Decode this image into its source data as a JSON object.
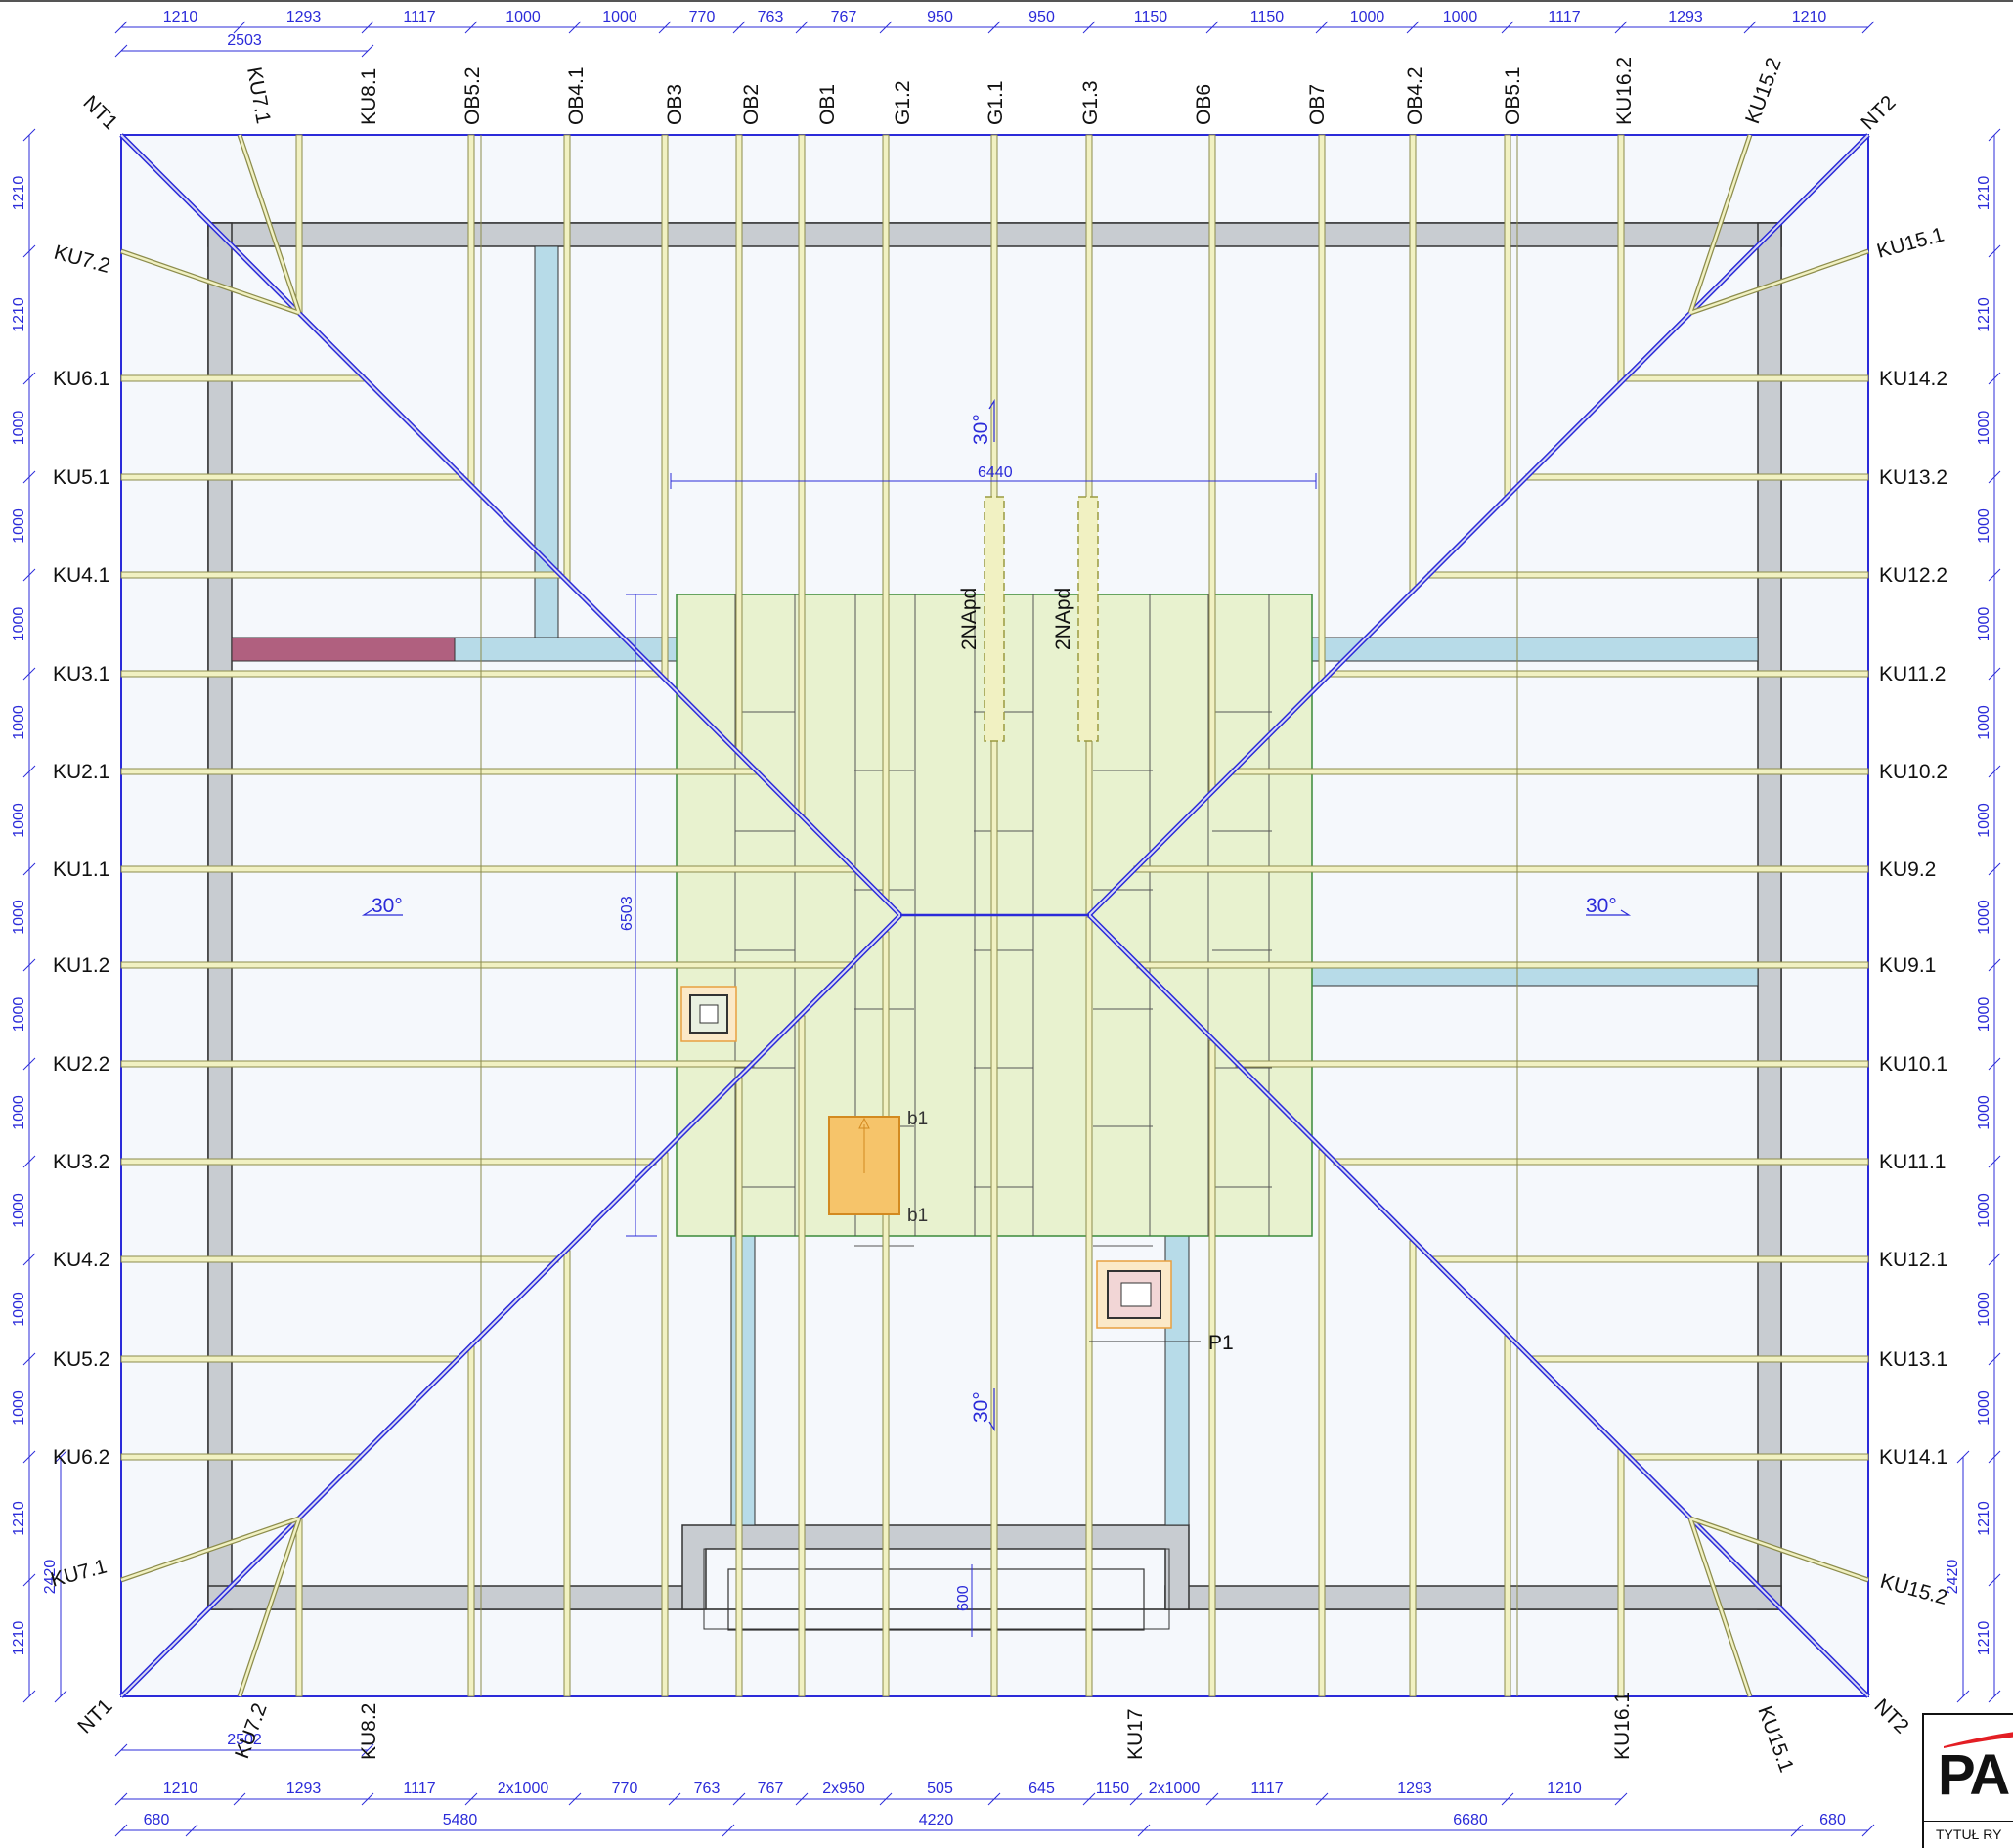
{
  "rafters_top": [
    {
      "id": "r-ku71",
      "label": "KU7.1"
    },
    {
      "id": "r-ku81",
      "label": "KU8.1"
    },
    {
      "id": "r-ob52",
      "label": "OB5.2"
    },
    {
      "id": "r-ob41",
      "label": "OB4.1"
    },
    {
      "id": "r-ob3",
      "label": "OB3"
    },
    {
      "id": "r-ob2",
      "label": "OB2"
    },
    {
      "id": "r-ob1",
      "label": "OB1"
    },
    {
      "id": "r-g12",
      "label": "G1.2"
    },
    {
      "id": "r-g11",
      "label": "G1.1"
    },
    {
      "id": "r-g13",
      "label": "G1.3"
    },
    {
      "id": "r-ob6",
      "label": "OB6"
    },
    {
      "id": "r-ob7",
      "label": "OB7"
    },
    {
      "id": "r-ob42",
      "label": "OB4.2"
    },
    {
      "id": "r-ob51",
      "label": "OB5.1"
    },
    {
      "id": "r-ku162",
      "label": "KU16.2"
    },
    {
      "id": "r-ku152",
      "label": "KU15.2"
    }
  ],
  "rafters_bottom": [
    "KU7.2",
    "KU8.2",
    "KU17",
    "KU16.1",
    "KU15.1"
  ],
  "hips": {
    "left_top": "NT1",
    "right_top": "NT2",
    "left_bottom": "NT1",
    "right_bottom": "NT2"
  },
  "rafters_left": [
    "KU7.2",
    "KU6.1",
    "KU5.1",
    "KU4.1",
    "KU3.1",
    "KU2.1",
    "KU1.1",
    "KU1.2",
    "KU2.2",
    "KU3.2",
    "KU4.2",
    "KU5.2",
    "KU6.2",
    "KU7.1"
  ],
  "rafters_right": [
    "KU15.1",
    "KU14.2",
    "KU13.2",
    "KU12.2",
    "KU11.2",
    "KU10.2",
    "KU9.2",
    "KU9.1",
    "KU10.1",
    "KU11.1",
    "KU12.1",
    "KU13.1",
    "KU14.1",
    "KU15.2"
  ],
  "dims_top": [
    "1210",
    "1293",
    "1117",
    "1000",
    "1000",
    "770",
    "763",
    "767",
    "950",
    "950",
    "1150",
    "1150",
    "1000",
    "1000",
    "1117",
    "1293",
    "1210"
  ],
  "dim_top_sub": "2503",
  "dims_bottom1": [
    "1210",
    "1293",
    "1117",
    "2x1000",
    "770",
    "763",
    "767",
    "2x950",
    "505",
    "645",
    "1150",
    "2x1000",
    "1117",
    "1293",
    "1210"
  ],
  "dim_bottom_sub": "2502",
  "dims_bottom2": [
    "680",
    "5480",
    "4220",
    "6680",
    "680"
  ],
  "dims_left": [
    "1210",
    "1210",
    "1000",
    "1000",
    "1000",
    "1000",
    "1000",
    "1000",
    "1000",
    "1000",
    "1000",
    "1000",
    "1000",
    "1210",
    "1210"
  ],
  "dims_right": [
    "1210",
    "1210",
    "1000",
    "1000",
    "1000",
    "1000",
    "1000",
    "1000",
    "1000",
    "1000",
    "1000",
    "1000",
    "1000",
    "1210",
    "1210"
  ],
  "dim_side_extra": "2420",
  "inner_dims": {
    "width": "6440",
    "height": "6503",
    "bottom": "600"
  },
  "slope_angle": "30°",
  "marks": {
    "nap": "2NApd",
    "b": "b1",
    "p": "P1"
  },
  "title_block": {
    "logo": "PA",
    "caption": "TYTUŁ RY"
  },
  "colors": {
    "plan_line": "#2b2bd9",
    "rafter_fill": "#f1f1c2",
    "rafter_stroke": "#8c8c4c",
    "wall": "#c8ccd1",
    "beam_blue": "#b7dbe8",
    "beam_red": "#b0607f",
    "opening_green": "#e8f2cf",
    "roof_fill": "#f5f8fc"
  }
}
